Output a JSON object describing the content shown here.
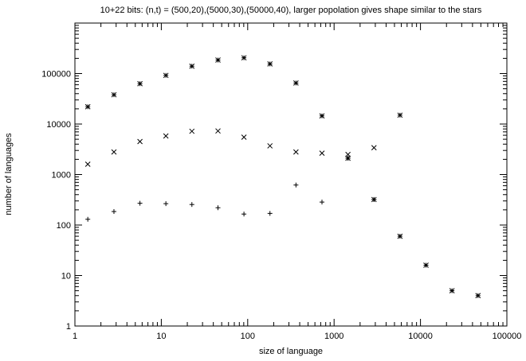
{
  "chart_data": {
    "type": "scatter",
    "title": "10+22 bits: (n,t) = (500,20),(5000,30),(50000,40), larger popolation gives shape similar to the stars",
    "xlabel": "size of language",
    "ylabel": "number of languages",
    "xscale": "log",
    "yscale": "log",
    "xlim": [
      1,
      100000
    ],
    "ylim": [
      1,
      1000000
    ],
    "x_ticks": [
      1,
      10,
      100,
      1000,
      10000,
      100000
    ],
    "x_tick_labels": [
      "1",
      "10",
      "100",
      "1000",
      "10000",
      "100000"
    ],
    "y_ticks": [
      1,
      10,
      100,
      1000,
      10000,
      100000
    ],
    "y_tick_labels": [
      "1",
      "10",
      "100",
      "1000",
      "10000",
      "100000"
    ],
    "grid": false,
    "legend": false,
    "series": [
      {
        "marker": "plus",
        "points": [
          [
            1.41,
            130
          ],
          [
            2.83,
            185
          ],
          [
            5.66,
            270
          ],
          [
            11.3,
            265
          ],
          [
            22.6,
            255
          ],
          [
            45.3,
            220
          ],
          [
            90.5,
            165
          ],
          [
            181,
            170
          ],
          [
            362,
            620
          ],
          [
            724,
            285
          ],
          [
            1448,
            2100
          ],
          [
            2896,
            320
          ]
        ]
      },
      {
        "marker": "cross",
        "points": [
          [
            1.41,
            1600
          ],
          [
            2.83,
            2800
          ],
          [
            5.66,
            4500
          ],
          [
            11.3,
            5800
          ],
          [
            22.6,
            7200
          ],
          [
            45.3,
            7300
          ],
          [
            90.5,
            5500
          ],
          [
            181,
            3700
          ],
          [
            362,
            2800
          ],
          [
            724,
            2650
          ],
          [
            1448,
            2500
          ],
          [
            2896,
            3400
          ]
        ]
      },
      {
        "marker": "star",
        "points": [
          [
            1.41,
            22000
          ],
          [
            2.83,
            38000
          ],
          [
            5.66,
            63000
          ],
          [
            11.3,
            92000
          ],
          [
            22.6,
            140000
          ],
          [
            45.3,
            185000
          ],
          [
            90.5,
            205000
          ],
          [
            181,
            155000
          ],
          [
            362,
            65000
          ],
          [
            724,
            14500
          ],
          [
            1448,
            2100
          ],
          [
            2896,
            320
          ],
          [
            5793,
            15000
          ],
          [
            5793,
            60
          ],
          [
            11585,
            16
          ],
          [
            23170,
            5
          ],
          [
            46341,
            4
          ]
        ]
      }
    ]
  }
}
